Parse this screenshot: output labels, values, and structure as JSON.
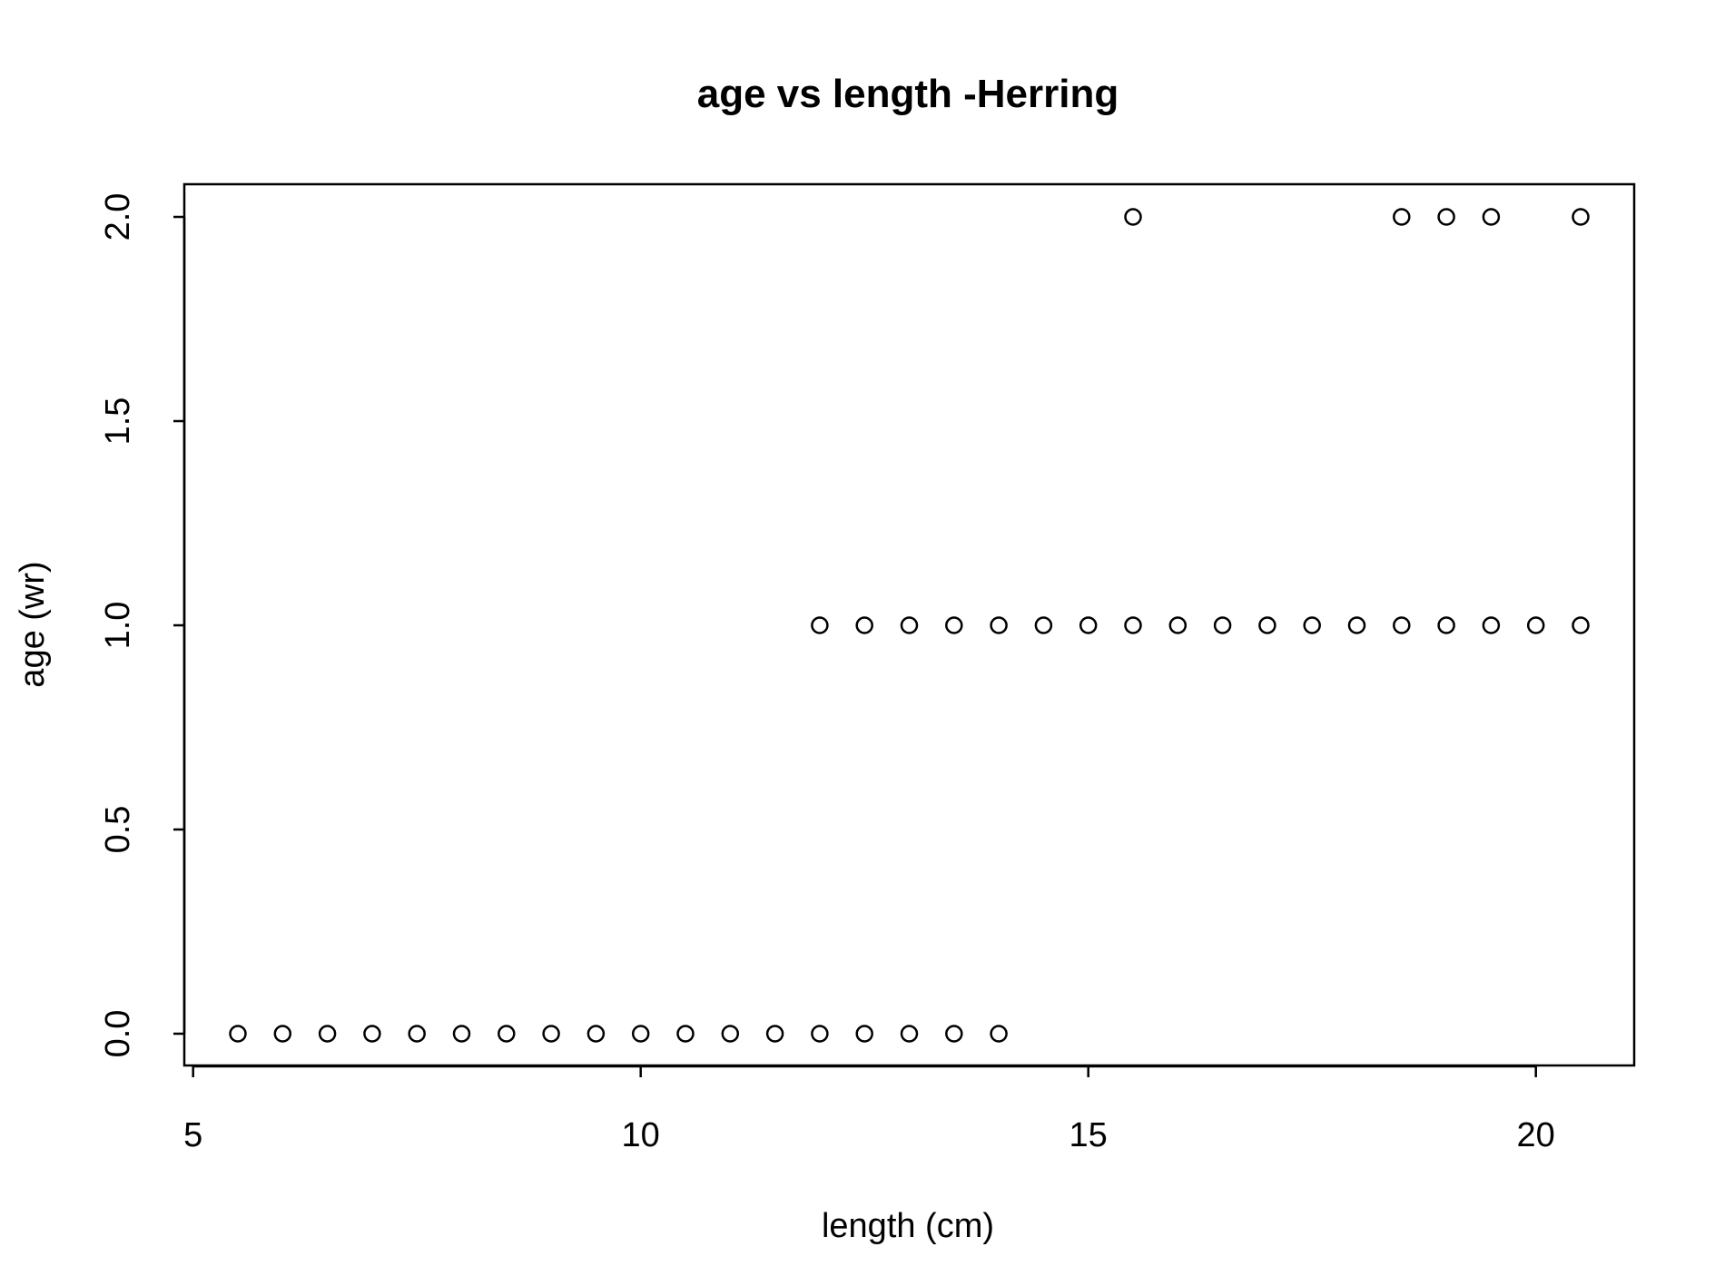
{
  "chart_data": {
    "type": "scatter",
    "title": "age vs length -Herring",
    "xlabel": "length (cm)",
    "ylabel": "age (wr)",
    "xlim": [
      5.5,
      20.5
    ],
    "ylim": [
      0,
      2
    ],
    "x_ticks": [
      5,
      10,
      15,
      20
    ],
    "y_ticks": [
      0,
      0.5,
      1,
      1.5,
      2
    ],
    "x_tick_labels": [
      "5",
      "10",
      "15",
      "20"
    ],
    "y_tick_labels": [
      "0.0",
      "0.5",
      "1.0",
      "1.5",
      "2.0"
    ],
    "grid": false,
    "legend": "none",
    "marker": "open-circle",
    "marker_color": "#000000",
    "series": [
      {
        "points": [
          {
            "x": 5.5,
            "y": 0
          },
          {
            "x": 6,
            "y": 0
          },
          {
            "x": 6.5,
            "y": 0
          },
          {
            "x": 7,
            "y": 0
          },
          {
            "x": 7.5,
            "y": 0
          },
          {
            "x": 8,
            "y": 0
          },
          {
            "x": 8.5,
            "y": 0
          },
          {
            "x": 9,
            "y": 0
          },
          {
            "x": 9.5,
            "y": 0
          },
          {
            "x": 10,
            "y": 0
          },
          {
            "x": 10.5,
            "y": 0
          },
          {
            "x": 11,
            "y": 0
          },
          {
            "x": 11.5,
            "y": 0
          },
          {
            "x": 12,
            "y": 0
          },
          {
            "x": 12.5,
            "y": 0
          },
          {
            "x": 13,
            "y": 0
          },
          {
            "x": 13.5,
            "y": 0
          },
          {
            "x": 14,
            "y": 0
          },
          {
            "x": 12,
            "y": 1
          },
          {
            "x": 12.5,
            "y": 1
          },
          {
            "x": 13,
            "y": 1
          },
          {
            "x": 13.5,
            "y": 1
          },
          {
            "x": 14,
            "y": 1
          },
          {
            "x": 14.5,
            "y": 1
          },
          {
            "x": 15,
            "y": 1
          },
          {
            "x": 15.5,
            "y": 1
          },
          {
            "x": 16,
            "y": 1
          },
          {
            "x": 16.5,
            "y": 1
          },
          {
            "x": 17,
            "y": 1
          },
          {
            "x": 17.5,
            "y": 1
          },
          {
            "x": 18,
            "y": 1
          },
          {
            "x": 18.5,
            "y": 1
          },
          {
            "x": 19,
            "y": 1
          },
          {
            "x": 19.5,
            "y": 1
          },
          {
            "x": 20,
            "y": 1
          },
          {
            "x": 20.5,
            "y": 1
          },
          {
            "x": 15.5,
            "y": 2
          },
          {
            "x": 18.5,
            "y": 2
          },
          {
            "x": 19,
            "y": 2
          },
          {
            "x": 19.5,
            "y": 2
          },
          {
            "x": 20.5,
            "y": 2
          }
        ]
      }
    ]
  }
}
